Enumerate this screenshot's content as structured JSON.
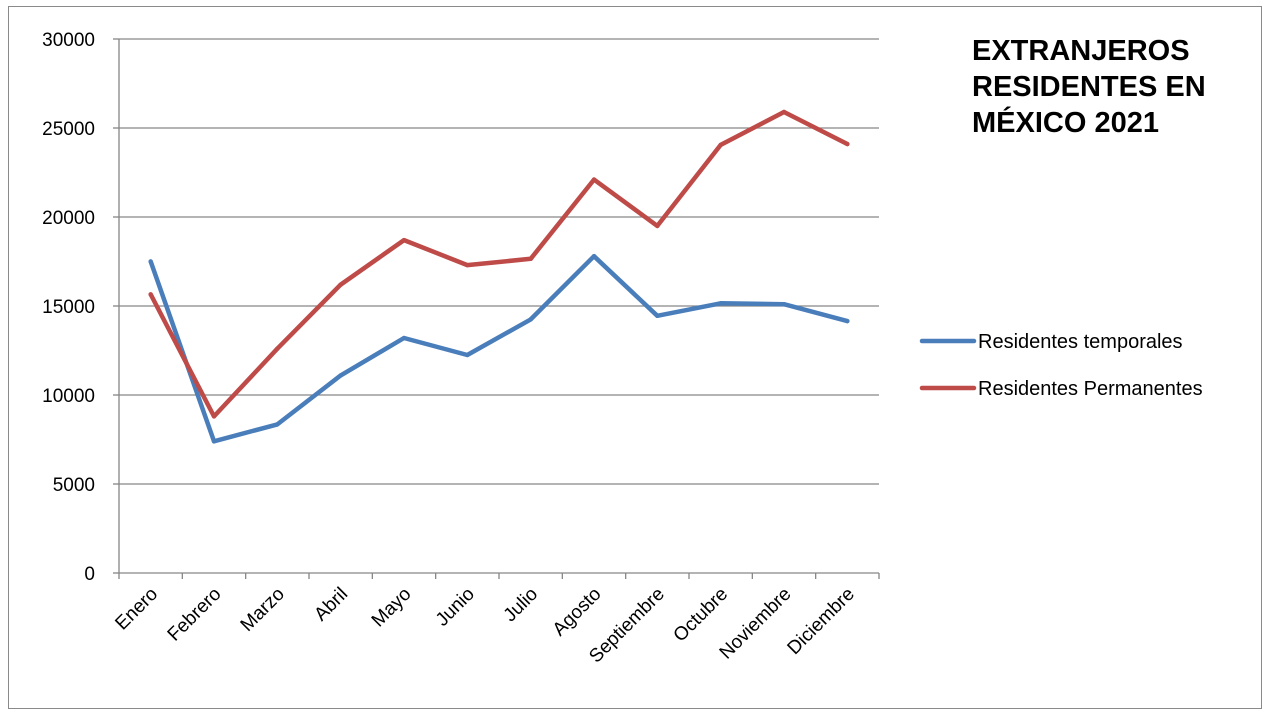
{
  "chart_data": {
    "type": "line",
    "title_lines": [
      "EXTRANJEROS",
      "RESIDENTES EN",
      "MÉXICO 2021"
    ],
    "categories": [
      "Enero",
      "Febrero",
      "Marzo",
      "Abril",
      "Mayo",
      "Junio",
      "Julio",
      "Agosto",
      "Septiembre",
      "Octubre",
      "Noviembre",
      "Diciembre"
    ],
    "ylim": [
      0,
      30000
    ],
    "yticks": [
      0,
      5000,
      10000,
      15000,
      20000,
      25000,
      30000
    ],
    "grid": true,
    "legend_position": "right",
    "series": [
      {
        "name": "Residentes temporales",
        "color": "#4a7ebb",
        "values": [
          17500,
          7400,
          8350,
          11100,
          13200,
          12250,
          14250,
          17800,
          14450,
          15150,
          15100,
          14150
        ]
      },
      {
        "name": "Residentes Permanentes",
        "color": "#be4b48",
        "values": [
          15650,
          8800,
          12600,
          16200,
          18700,
          17300,
          17650,
          22100,
          19500,
          24050,
          25900,
          24100
        ]
      }
    ]
  }
}
